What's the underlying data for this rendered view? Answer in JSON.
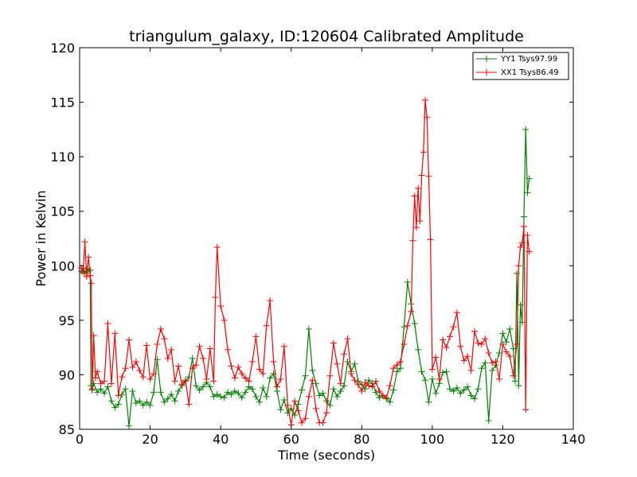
{
  "chart_data": {
    "type": "line",
    "title": "triangulum_galaxy, ID:120604 Calibrated Amplitude",
    "xlabel": "Time (seconds)",
    "ylabel": "Power in Kelvin",
    "xlim": [
      0,
      140
    ],
    "ylim": [
      85,
      120
    ],
    "xticks": [
      "0",
      "20",
      "40",
      "60",
      "80",
      "100",
      "120",
      "140"
    ],
    "yticks": [
      "85",
      "90",
      "95",
      "100",
      "105",
      "110",
      "115",
      "120"
    ],
    "grid": false,
    "legend_position": "top-right",
    "marker": "+",
    "series": [
      {
        "name": "YY1 Tsys97.99",
        "color": "#008000",
        "x": [
          0.5,
          1.0,
          1.5,
          2.0,
          2.5,
          3.0,
          3.2,
          3.5,
          4.0,
          5.0,
          6.0,
          7.0,
          8.0,
          9.0,
          10.0,
          11.0,
          12.0,
          13.0,
          14.0,
          15.0,
          16.0,
          17.0,
          18.0,
          19.0,
          20.0,
          21.0,
          22.0,
          23.0,
          24.0,
          25.0,
          26.0,
          27.0,
          28.0,
          29.0,
          30.0,
          31.0,
          32.0,
          33.0,
          34.0,
          35.0,
          36.0,
          37.0,
          38.0,
          39.0,
          40.0,
          41.0,
          42.0,
          43.0,
          44.0,
          45.0,
          46.0,
          47.0,
          48.0,
          49.0,
          50.0,
          51.0,
          52.0,
          53.0,
          54.0,
          55.0,
          56.0,
          57.0,
          58.0,
          59.0,
          60.0,
          61.0,
          62.0,
          63.0,
          64.0,
          65.0,
          66.0,
          67.0,
          68.0,
          69.0,
          70.0,
          71.0,
          72.0,
          73.0,
          74.0,
          75.0,
          76.0,
          77.0,
          78.0,
          79.0,
          80.0,
          81.0,
          82.0,
          83.0,
          84.0,
          85.0,
          86.0,
          87.0,
          88.0,
          89.0,
          90.0,
          91.0,
          92.0,
          93.0,
          94.0,
          95.0,
          96.0,
          97.0,
          98.0,
          99.0,
          100.0,
          101.0,
          102.0,
          103.0,
          104.0,
          105.0,
          106.0,
          107.0,
          108.0,
          109.0,
          110.0,
          111.0,
          112.0,
          113.0,
          114.0,
          115.0,
          116.0,
          117.0,
          118.0,
          119.0,
          120.0,
          121.0,
          122.0,
          123.0,
          123.5,
          124.0,
          124.5,
          125.0,
          125.5,
          126.0,
          126.5,
          127.0,
          127.5
        ],
        "values": [
          99.5,
          99.8,
          99.3,
          99.7,
          99.5,
          99.6,
          89.0,
          88.6,
          89.2,
          88.4,
          88.7,
          88.3,
          88.9,
          87.6,
          87.0,
          87.3,
          88.2,
          88.7,
          85.3,
          88.5,
          87.4,
          87.6,
          87.2,
          87.5,
          87.2,
          88.4,
          91.4,
          88.4,
          87.5,
          87.8,
          88.2,
          87.6,
          88.5,
          89.0,
          89.4,
          89.8,
          91.5,
          89.0,
          88.6,
          88.9,
          89.3,
          88.9,
          88.0,
          88.2,
          88.0,
          87.9,
          88.4,
          88.2,
          88.5,
          88.3,
          87.9,
          88.4,
          88.9,
          88.7,
          88.0,
          87.5,
          88.8,
          88.0,
          89.7,
          90.1,
          88.5,
          86.8,
          87.7,
          86.5,
          86.9,
          86.3,
          87.3,
          88.6,
          89.9,
          94.2,
          90.4,
          89.2,
          88.1,
          88.3,
          87.6,
          87.2,
          88.7,
          88.0,
          88.5,
          89.0,
          91.2,
          90.3,
          91.0,
          89.4,
          89.1,
          88.7,
          89.5,
          89.2,
          88.4,
          87.9,
          88.1,
          87.8,
          87.5,
          88.6,
          90.3,
          90.6,
          94.4,
          98.5,
          96.5,
          94.7,
          92.3,
          90.3,
          89.5,
          87.5,
          89.6,
          88.3,
          89.2,
          90.2,
          90.3,
          88.7,
          88.5,
          88.8,
          88.3,
          88.6,
          88.9,
          88.1,
          87.8,
          88.7,
          90.6,
          91.1,
          85.8,
          90.4,
          90.9,
          92.0,
          93.8,
          93.0,
          94.2,
          92.4,
          89.4,
          99.3,
          89.0,
          96.4,
          94.8,
          104.5,
          112.5,
          106.7,
          108.0
        ]
      },
      {
        "name": "XX1 Tsys86.49",
        "color": "#ff0000",
        "x": [
          0.5,
          1.0,
          1.5,
          2.0,
          2.5,
          3.0,
          3.3,
          3.6,
          4.0,
          4.5,
          5.0,
          6.0,
          7.0,
          8.0,
          9.0,
          10.0,
          11.0,
          12.0,
          13.0,
          14.0,
          15.0,
          16.0,
          17.0,
          18.0,
          19.0,
          20.0,
          21.0,
          22.0,
          23.0,
          24.0,
          25.0,
          26.0,
          27.0,
          28.0,
          29.0,
          30.0,
          31.0,
          32.0,
          33.0,
          34.0,
          35.0,
          36.0,
          37.0,
          38.0,
          38.5,
          39.0,
          40.0,
          41.0,
          42.0,
          43.0,
          44.0,
          45.0,
          46.0,
          47.0,
          48.0,
          49.0,
          50.0,
          51.0,
          52.0,
          53.0,
          54.0,
          55.0,
          56.0,
          57.0,
          58.0,
          59.0,
          60.0,
          61.0,
          62.0,
          63.0,
          64.0,
          65.0,
          66.0,
          67.0,
          68.0,
          69.0,
          70.0,
          71.0,
          72.0,
          73.0,
          74.0,
          75.0,
          76.0,
          77.0,
          78.0,
          79.0,
          80.0,
          81.0,
          82.0,
          83.0,
          84.0,
          85.0,
          86.0,
          87.0,
          88.0,
          89.0,
          90.0,
          91.0,
          92.0,
          93.0,
          94.0,
          94.5,
          95.0,
          95.5,
          96.0,
          96.5,
          97.0,
          97.5,
          98.0,
          98.5,
          99.0,
          99.5,
          100.0,
          101.0,
          102.0,
          103.0,
          104.0,
          105.0,
          106.0,
          107.0,
          108.0,
          109.0,
          110.0,
          111.0,
          112.0,
          113.0,
          114.0,
          115.0,
          116.0,
          117.0,
          118.0,
          119.0,
          120.0,
          121.0,
          122.0,
          123.0,
          124.0,
          124.5,
          125.0,
          125.5,
          126.0,
          126.5,
          127.0,
          127.5
        ],
        "values": [
          99.8,
          99.4,
          102.2,
          99.0,
          100.8,
          99.1,
          98.4,
          88.7,
          93.6,
          89.7,
          90.3,
          89.2,
          89.4,
          94.7,
          89.2,
          93.8,
          88.1,
          89.8,
          90.6,
          93.2,
          90.7,
          91.2,
          90.4,
          89.8,
          92.7,
          89.6,
          90.1,
          92.8,
          94.2,
          93.3,
          91.5,
          92.3,
          89.4,
          90.8,
          89.1,
          89.5,
          87.3,
          90.6,
          90.9,
          92.6,
          91.5,
          89.6,
          92.4,
          89.4,
          97.1,
          101.7,
          96.3,
          95.0,
          92.3,
          90.8,
          89.7,
          90.7,
          90.1,
          89.7,
          89.4,
          91.2,
          93.5,
          90.5,
          90.1,
          94.5,
          96.8,
          91.2,
          88.9,
          89.6,
          92.6,
          87.2,
          85.4,
          87.6,
          86.7,
          85.6,
          86.0,
          88.0,
          89.5,
          86.9,
          85.6,
          85.6,
          86.5,
          89.9,
          92.9,
          91.0,
          89.2,
          91.9,
          93.3,
          90.1,
          89.5,
          89.1,
          88.5,
          89.3,
          89.0,
          88.9,
          89.4,
          88.5,
          88.1,
          87.9,
          89.0,
          90.6,
          90.9,
          91.2,
          92.8,
          94.5,
          95.8,
          102.3,
          106.4,
          103.5,
          107.1,
          104.1,
          108.3,
          110.4,
          115.2,
          113.6,
          108.2,
          102.4,
          90.5,
          91.6,
          89.6,
          93.2,
          92.5,
          93.5,
          94.4,
          95.7,
          92.6,
          91.3,
          91.7,
          90.4,
          94.0,
          92.9,
          92.8,
          93.3,
          92.0,
          91.1,
          91.2,
          89.6,
          92.8,
          92.1,
          91.7,
          89.9,
          92.8,
          100.0,
          101.7,
          102.1,
          103.6,
          86.8,
          102.8,
          101.3
        ]
      }
    ]
  }
}
